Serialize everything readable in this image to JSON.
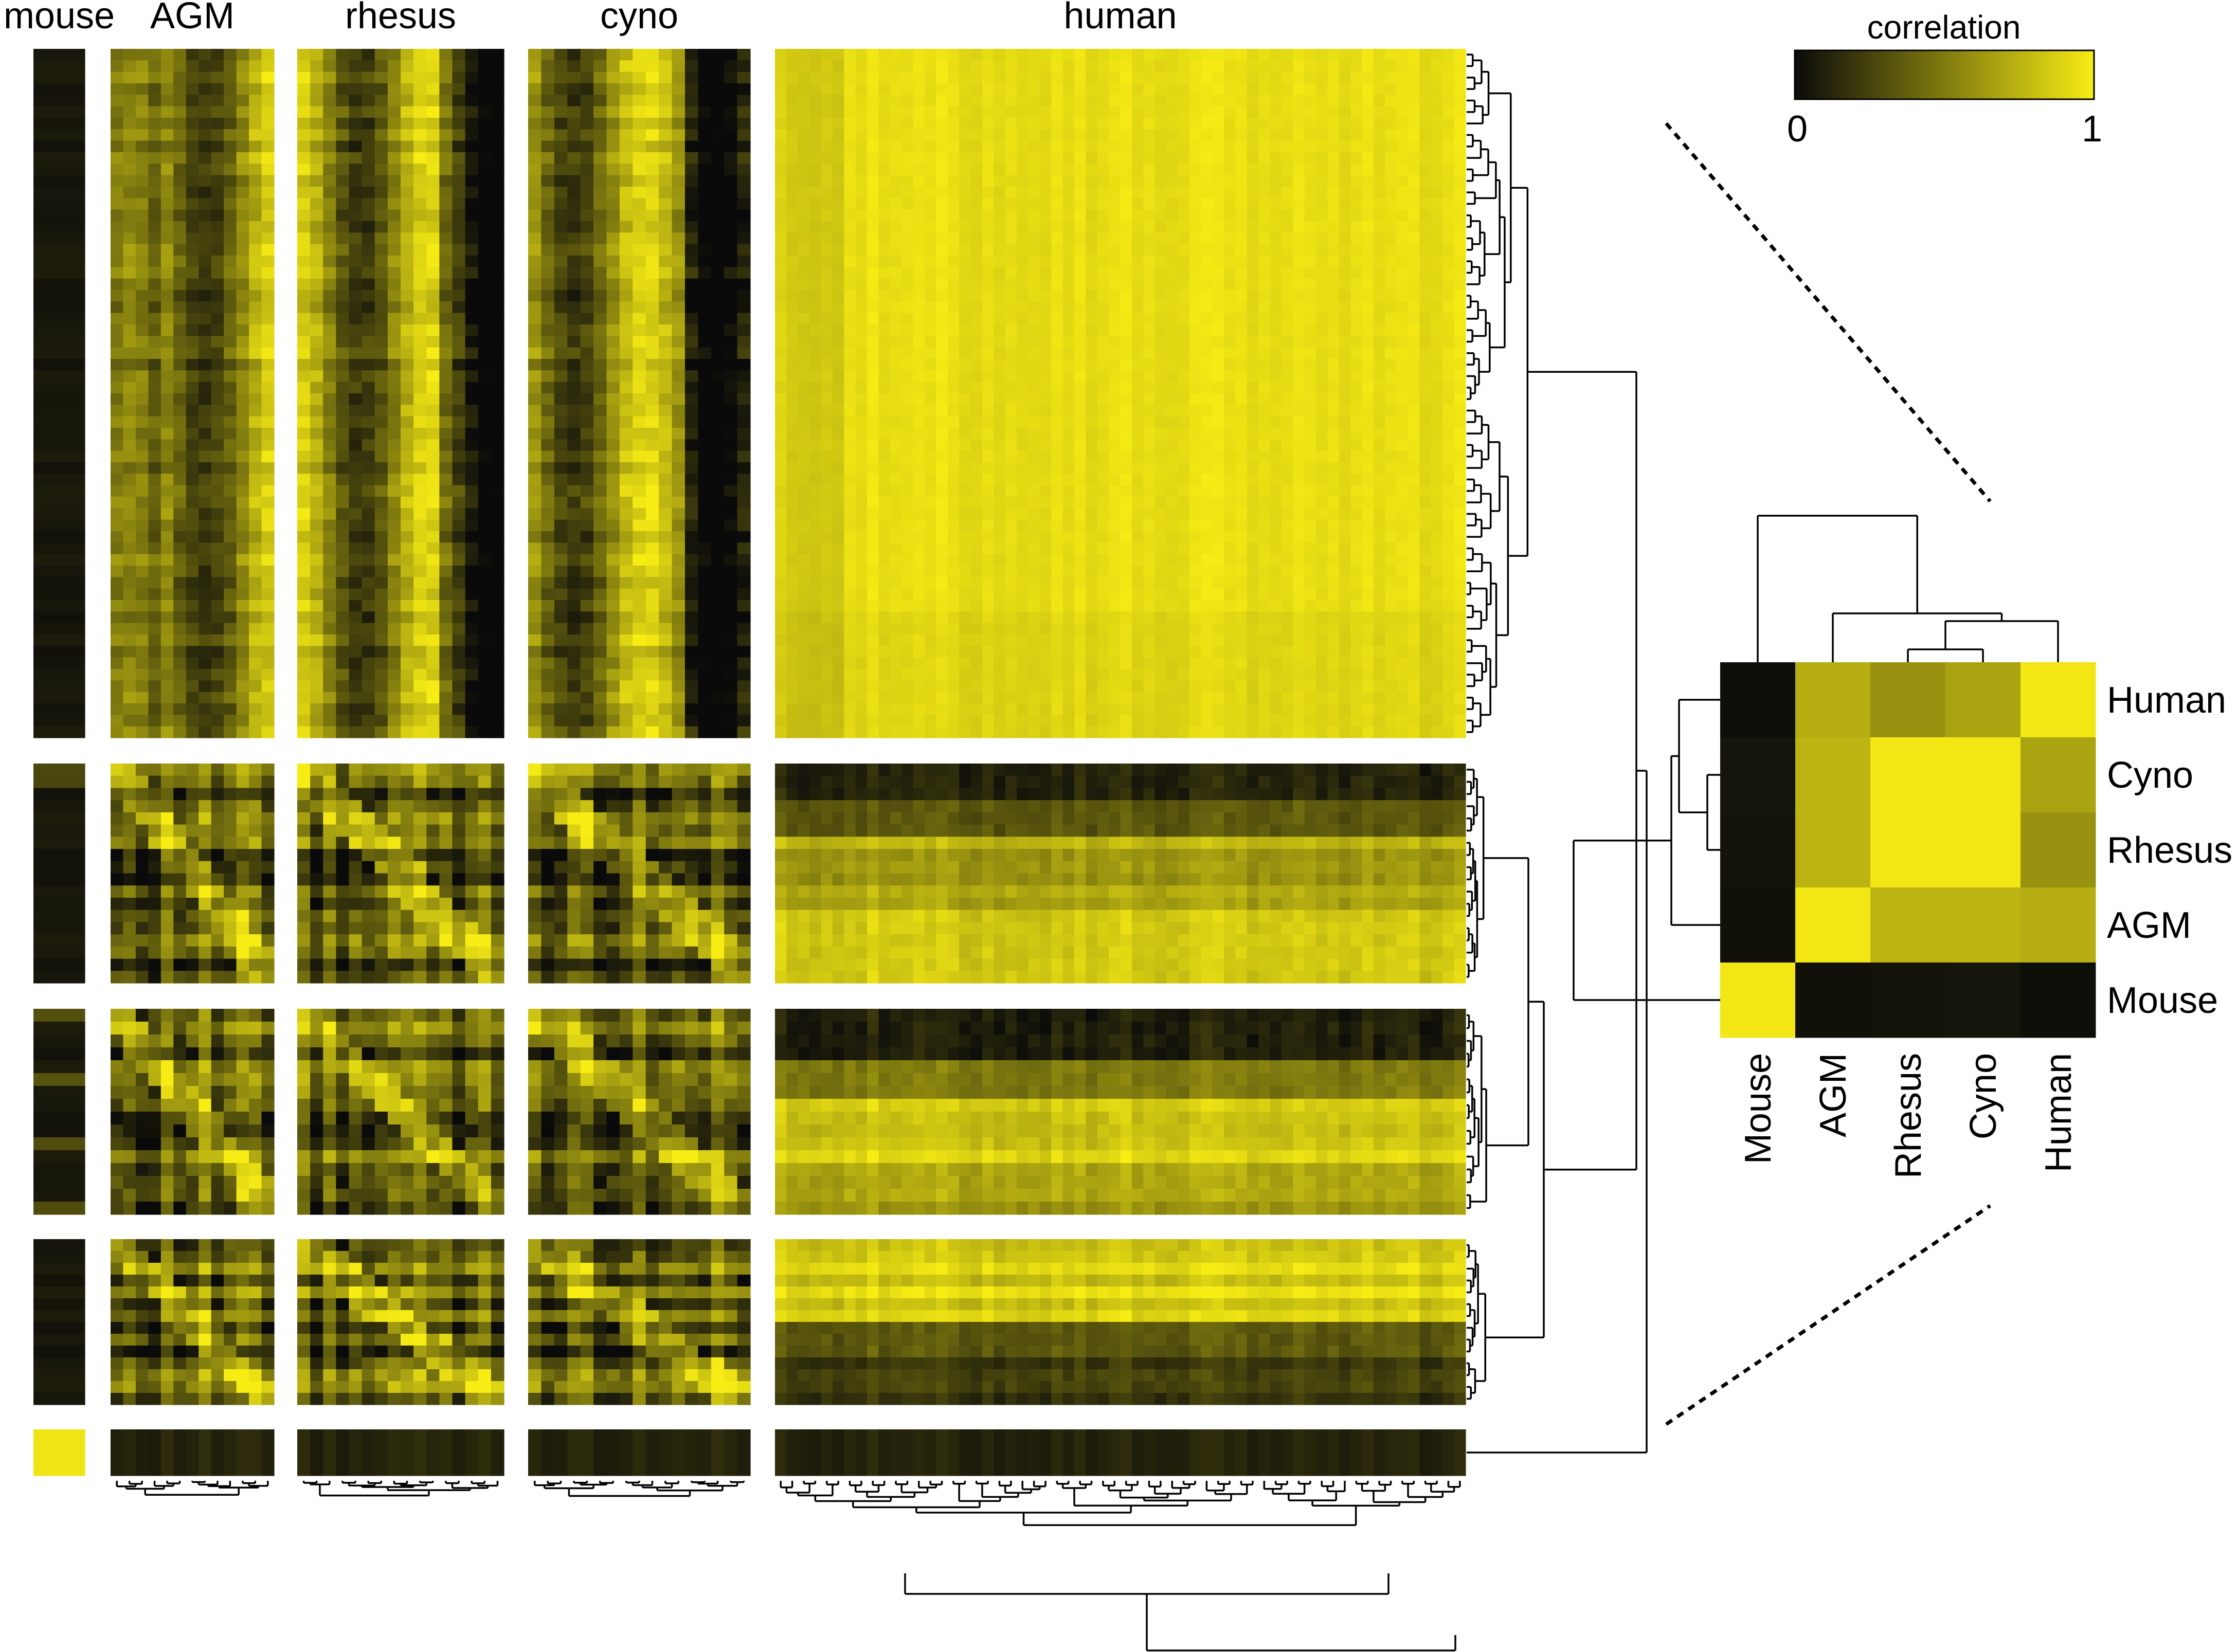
{
  "chart_data": [
    {
      "type": "heatmap",
      "description_role": "cross-species correlation matrix of clustered samples",
      "column_groups": [
        {
          "label": "mouse",
          "n": 1
        },
        {
          "label": "AGM",
          "n": 13
        },
        {
          "label": "rhesus",
          "n": 16
        },
        {
          "label": "cyno",
          "n": 17
        },
        {
          "label": "human",
          "n": 60
        }
      ],
      "row_blocks": [
        {
          "id": "block1",
          "n": 60,
          "pattern": "human-like samples; high correlation with human columns"
        },
        {
          "id": "block2",
          "n": 18,
          "pattern": "mixed primate; gradient with human"
        },
        {
          "id": "block3",
          "n": 16,
          "pattern": "mixed primate; gradient with human"
        },
        {
          "id": "block4",
          "n": 14,
          "pattern": "mixed primate; low-correlation human rows at bottom"
        },
        {
          "id": "block5",
          "n": 1,
          "pattern": "mouse sample; correlates only with mouse"
        }
      ],
      "color_scale": {
        "min": 0,
        "max": 1,
        "low_color": "#0a0a0a",
        "high_color": "#f7ec14"
      },
      "dendrograms": true
    },
    {
      "type": "heatmap",
      "role": "species-level summary",
      "rows": [
        "Human",
        "Cyno",
        "Rhesus",
        "AGM",
        "Mouse"
      ],
      "columns": [
        "Mouse",
        "AGM",
        "Rhesus",
        "Cyno",
        "Human"
      ],
      "values": [
        [
          0.02,
          0.72,
          0.6,
          0.68,
          0.98
        ],
        [
          0.05,
          0.75,
          0.98,
          0.98,
          0.68
        ],
        [
          0.04,
          0.75,
          0.98,
          0.98,
          0.6
        ],
        [
          0.03,
          0.98,
          0.75,
          0.75,
          0.72
        ],
        [
          0.98,
          0.03,
          0.04,
          0.05,
          0.02
        ]
      ],
      "dendrograms": true
    }
  ],
  "legend": {
    "title": "correlation",
    "min_label": "0",
    "max_label": "1",
    "low_color": "#0a0a0a",
    "high_color": "#f7ec14"
  }
}
